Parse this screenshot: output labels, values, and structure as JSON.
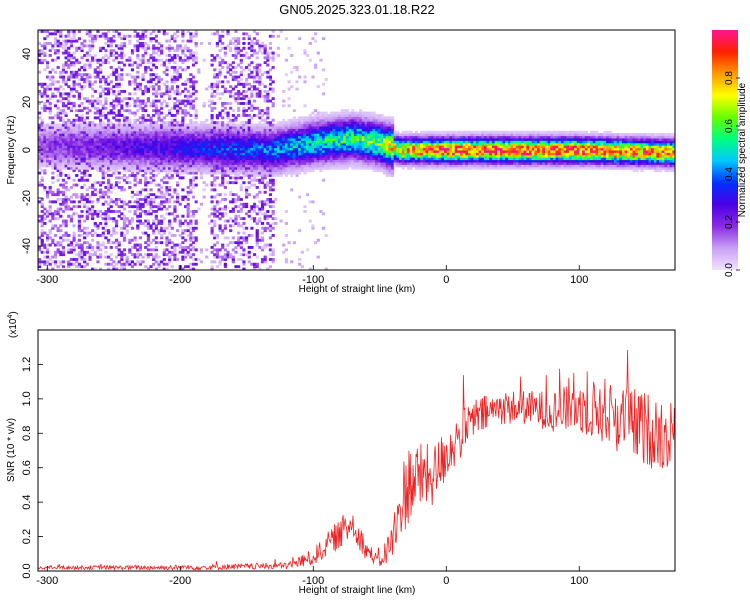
{
  "title": "GN05.2025.323.01.18.R22",
  "chart_data": [
    {
      "type": "heatmap",
      "name": "spectrogram",
      "xlabel": "Height of straight line (km)",
      "ylabel": "Frequency (Hz)",
      "xlim": [
        -307,
        172
      ],
      "ylim": [
        -50,
        50
      ],
      "xticks": [
        -300,
        -200,
        -100,
        0,
        100
      ],
      "yticks": [
        -40,
        -20,
        0,
        20,
        40
      ],
      "colorbar": {
        "label": "Normalized spectral amplitude",
        "range": [
          0,
          1
        ],
        "ticks": [
          0.0,
          0.2,
          0.4,
          0.6,
          0.8
        ],
        "colormap": [
          "#f0e4ff",
          "#c9a0f5",
          "#8a2be2",
          "#4b00e6",
          "#0030ff",
          "#00c8ff",
          "#00ff80",
          "#66ff00",
          "#ffff00",
          "#ff9900",
          "#ff2000",
          "#ff1493"
        ]
      },
      "band": {
        "description_points_x": [
          -307,
          -200,
          -130,
          -100,
          -70,
          -50,
          -35,
          0,
          100,
          172
        ],
        "center_freq": [
          2,
          1,
          0,
          3,
          5,
          3,
          0,
          0,
          0,
          -1
        ],
        "peak_amplitude": [
          0.15,
          0.3,
          0.4,
          0.5,
          0.55,
          0.6,
          0.8,
          0.92,
          0.92,
          0.85
        ],
        "noise_until_x": -130
      },
      "grid": false
    },
    {
      "type": "line",
      "name": "snr",
      "xlabel": "Height of straight line (km)",
      "ylabel": "SNR (10 * v/v)",
      "yscale_note": "(x10",
      "yscale_exp": "4",
      "xlim": [
        -307,
        172
      ],
      "ylim": [
        0,
        1.4
      ],
      "xticks": [
        -300,
        -200,
        -100,
        0,
        100
      ],
      "yticks": [
        0.0,
        0.2,
        0.4,
        0.6,
        0.8,
        1.0,
        1.2
      ],
      "ytick_labels": [
        "0.0",
        "0.2",
        "0.4",
        "0.6",
        "0.8",
        "1.0",
        "1.2"
      ],
      "color": "#ee2222",
      "envelope_x": [
        -307,
        -200,
        -120,
        -100,
        -90,
        -80,
        -70,
        -60,
        -50,
        -40,
        -30,
        -20,
        -10,
        0,
        10,
        20,
        40,
        60,
        80,
        100,
        120,
        140,
        160,
        172
      ],
      "envelope_y": [
        0.02,
        0.02,
        0.03,
        0.08,
        0.15,
        0.22,
        0.28,
        0.12,
        0.05,
        0.18,
        0.5,
        0.55,
        0.55,
        0.68,
        0.78,
        0.88,
        0.95,
        0.95,
        0.93,
        0.95,
        0.93,
        0.85,
        0.8,
        0.78
      ],
      "envelope_noise": [
        0.01,
        0.015,
        0.02,
        0.05,
        0.07,
        0.09,
        0.1,
        0.06,
        0.03,
        0.14,
        0.25,
        0.2,
        0.18,
        0.16,
        0.14,
        0.12,
        0.1,
        0.1,
        0.12,
        0.15,
        0.2,
        0.22,
        0.22,
        0.2
      ],
      "grid": false
    }
  ]
}
